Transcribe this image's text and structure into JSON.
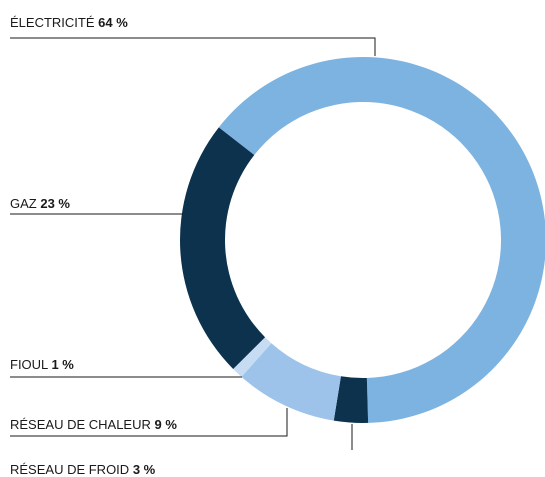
{
  "chart_data": {
    "type": "donut",
    "categories": [
      "ÉLECTRICITÉ",
      "RÉSEAU DE FROID",
      "RÉSEAU DE CHALEUR",
      "FIOUL",
      "GAZ"
    ],
    "values": [
      64,
      3,
      9,
      1,
      23
    ],
    "value_labels": [
      "64 %",
      "3 %",
      "9 %",
      "1 %",
      "23 %"
    ],
    "colors": [
      "#7db3e0",
      "#0c324d",
      "#9dc3ea",
      "#c6dcf3",
      "#0c324d"
    ]
  }
}
